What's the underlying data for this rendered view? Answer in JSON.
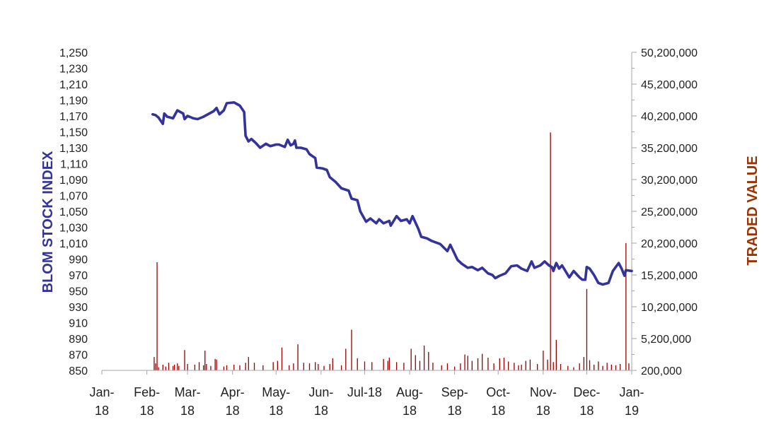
{
  "chart_data": {
    "type": "line",
    "title": "",
    "y_left": {
      "label": "BLOM STOCK INDEX",
      "color": "#333399",
      "ylim": [
        850,
        1250
      ],
      "ticks": [
        850,
        870,
        890,
        910,
        930,
        950,
        970,
        990,
        1010,
        1030,
        1050,
        1070,
        1090,
        1110,
        1130,
        1150,
        1170,
        1190,
        1210,
        1230,
        1250
      ],
      "tick_labels": [
        "850",
        "870",
        "890",
        "910",
        "930",
        "950",
        "970",
        "990",
        "1,010",
        "1,030",
        "1,050",
        "1,070",
        "1,090",
        "1,110",
        "1,130",
        "1,150",
        "1,170",
        "1,190",
        "1,210",
        "1,230",
        "1,250"
      ]
    },
    "y_right": {
      "label": "TRADED VALUE",
      "color": "#993300",
      "ylim": [
        200000,
        50200000
      ],
      "ticks": [
        200000,
        5200000,
        10200000,
        15200000,
        20200000,
        25200000,
        30200000,
        35200000,
        40200000,
        45200000,
        50200000
      ],
      "tick_labels": [
        "200,000",
        "5,200,000",
        "10,200,000",
        "15,200,000",
        "20,200,000",
        "25,200,000",
        "30,200,000",
        "35,200,000",
        "40,200,000",
        "45,200,000",
        "50,200,000"
      ]
    },
    "x_axis": {
      "range": [
        "2018-01-01",
        "2019-01-01"
      ],
      "ticks": [
        "2018-01-01",
        "2018-02-01",
        "2018-03-01",
        "2018-04-01",
        "2018-05-01",
        "2018-06-01",
        "2018-07-01",
        "2018-08-01",
        "2018-09-01",
        "2018-10-01",
        "2018-11-01",
        "2018-12-01",
        "2019-01-01"
      ],
      "tick_labels": [
        [
          "Jan-",
          "18"
        ],
        [
          "Feb-",
          "18"
        ],
        [
          "Mar-",
          "18"
        ],
        [
          "Apr-",
          "18"
        ],
        [
          "May-",
          "18"
        ],
        [
          "Jun-",
          "18"
        ],
        [
          "Jul-18",
          ""
        ],
        [
          "Aug-",
          "18"
        ],
        [
          "Sep-",
          "18"
        ],
        [
          "Oct-",
          "18"
        ],
        [
          "Nov-",
          "18"
        ],
        [
          "Dec-",
          "18"
        ],
        [
          "Jan-",
          "19"
        ]
      ]
    },
    "grid": false,
    "legend": "none",
    "series": [
      {
        "axis": "left",
        "kind": "line",
        "color": "#333399",
        "points": [
          [
            "2018-02-05",
            1172
          ],
          [
            "2018-02-07",
            1171
          ],
          [
            "2018-02-09",
            1168
          ],
          [
            "2018-02-12",
            1160
          ],
          [
            "2018-02-13",
            1173
          ],
          [
            "2018-02-15",
            1169
          ],
          [
            "2018-02-19",
            1167
          ],
          [
            "2018-02-22",
            1177
          ],
          [
            "2018-02-26",
            1173
          ],
          [
            "2018-02-27",
            1166
          ],
          [
            "2018-03-01",
            1170
          ],
          [
            "2018-03-05",
            1167
          ],
          [
            "2018-03-08",
            1166
          ],
          [
            "2018-03-12",
            1169
          ],
          [
            "2018-03-15",
            1172
          ],
          [
            "2018-03-19",
            1176
          ],
          [
            "2018-03-21",
            1180
          ],
          [
            "2018-03-23",
            1172
          ],
          [
            "2018-03-26",
            1177
          ],
          [
            "2018-03-28",
            1186
          ],
          [
            "2018-04-02",
            1187
          ],
          [
            "2018-04-04",
            1185
          ],
          [
            "2018-04-06",
            1183
          ],
          [
            "2018-04-09",
            1175
          ],
          [
            "2018-04-10",
            1145
          ],
          [
            "2018-04-12",
            1138
          ],
          [
            "2018-04-14",
            1141
          ],
          [
            "2018-04-17",
            1136
          ],
          [
            "2018-04-20",
            1130
          ],
          [
            "2018-04-24",
            1135
          ],
          [
            "2018-04-27",
            1132
          ],
          [
            "2018-05-01",
            1134
          ],
          [
            "2018-05-03",
            1134
          ],
          [
            "2018-05-07",
            1131
          ],
          [
            "2018-05-09",
            1140
          ],
          [
            "2018-05-11",
            1133
          ],
          [
            "2018-05-13",
            1135
          ],
          [
            "2018-05-14",
            1139
          ],
          [
            "2018-05-15",
            1130
          ],
          [
            "2018-05-18",
            1130
          ],
          [
            "2018-05-22",
            1128
          ],
          [
            "2018-05-24",
            1122
          ],
          [
            "2018-05-28",
            1117
          ],
          [
            "2018-05-29",
            1105
          ],
          [
            "2018-06-02",
            1104
          ],
          [
            "2018-06-05",
            1102
          ],
          [
            "2018-06-07",
            1093
          ],
          [
            "2018-06-11",
            1087
          ],
          [
            "2018-06-15",
            1079
          ],
          [
            "2018-06-20",
            1076
          ],
          [
            "2018-06-22",
            1066
          ],
          [
            "2018-06-26",
            1064
          ],
          [
            "2018-06-28",
            1050
          ],
          [
            "2018-07-02",
            1037
          ],
          [
            "2018-07-05",
            1041
          ],
          [
            "2018-07-09",
            1035
          ],
          [
            "2018-07-11",
            1040
          ],
          [
            "2018-07-14",
            1035
          ],
          [
            "2018-07-18",
            1038
          ],
          [
            "2018-07-19",
            1032
          ],
          [
            "2018-07-23",
            1044
          ],
          [
            "2018-07-26",
            1038
          ],
          [
            "2018-07-30",
            1040
          ],
          [
            "2018-08-01",
            1035
          ],
          [
            "2018-08-03",
            1044
          ],
          [
            "2018-08-07",
            1028
          ],
          [
            "2018-08-09",
            1018
          ],
          [
            "2018-08-13",
            1016
          ],
          [
            "2018-08-16",
            1013
          ],
          [
            "2018-08-22",
            1009
          ],
          [
            "2018-08-27",
            1000
          ],
          [
            "2018-08-29",
            1008
          ],
          [
            "2018-09-03",
            989
          ],
          [
            "2018-09-06",
            984
          ],
          [
            "2018-09-10",
            979
          ],
          [
            "2018-09-13",
            980
          ],
          [
            "2018-09-17",
            976
          ],
          [
            "2018-09-20",
            979
          ],
          [
            "2018-09-24",
            972
          ],
          [
            "2018-09-27",
            970
          ],
          [
            "2018-09-29",
            966
          ],
          [
            "2018-10-02",
            969
          ],
          [
            "2018-10-06",
            972
          ],
          [
            "2018-10-10",
            981
          ],
          [
            "2018-10-14",
            982
          ],
          [
            "2018-10-17",
            978
          ],
          [
            "2018-10-21",
            975
          ],
          [
            "2018-10-24",
            987
          ],
          [
            "2018-10-26",
            979
          ],
          [
            "2018-10-30",
            982
          ],
          [
            "2018-11-02",
            987
          ],
          [
            "2018-11-05",
            982
          ],
          [
            "2018-11-07",
            980
          ],
          [
            "2018-11-08",
            975
          ],
          [
            "2018-11-10",
            985
          ],
          [
            "2018-11-12",
            978
          ],
          [
            "2018-11-14",
            982
          ],
          [
            "2018-11-16",
            976
          ],
          [
            "2018-11-19",
            967
          ],
          [
            "2018-11-22",
            975
          ],
          [
            "2018-11-26",
            967
          ],
          [
            "2018-11-28",
            964
          ],
          [
            "2018-11-30",
            964
          ],
          [
            "2018-12-01",
            980
          ],
          [
            "2018-12-03",
            978
          ],
          [
            "2018-12-06",
            970
          ],
          [
            "2018-12-09",
            960
          ],
          [
            "2018-12-12",
            958
          ],
          [
            "2018-12-16",
            960
          ],
          [
            "2018-12-19",
            975
          ],
          [
            "2018-12-23",
            985
          ],
          [
            "2018-12-25",
            978
          ],
          [
            "2018-12-27",
            969
          ],
          [
            "2018-12-28",
            976
          ],
          [
            "2019-01-01",
            975
          ]
        ]
      },
      {
        "axis": "right",
        "kind": "bar",
        "color": "#990000",
        "points": [
          [
            "2018-02-06",
            2300000
          ],
          [
            "2018-02-07",
            1300000
          ],
          [
            "2018-02-08",
            17200000
          ],
          [
            "2018-02-09",
            700000
          ],
          [
            "2018-02-12",
            1100000
          ],
          [
            "2018-02-14",
            800000
          ],
          [
            "2018-02-16",
            1400000
          ],
          [
            "2018-02-19",
            900000
          ],
          [
            "2018-02-20",
            1100000
          ],
          [
            "2018-02-22",
            1300000
          ],
          [
            "2018-02-23",
            900000
          ],
          [
            "2018-02-27",
            3400000
          ],
          [
            "2018-03-01",
            1200000
          ],
          [
            "2018-03-06",
            1100000
          ],
          [
            "2018-03-09",
            1500000
          ],
          [
            "2018-03-12",
            1000000
          ],
          [
            "2018-03-13",
            3300000
          ],
          [
            "2018-03-14",
            1200000
          ],
          [
            "2018-03-17",
            900000
          ],
          [
            "2018-03-20",
            2000000
          ],
          [
            "2018-03-21",
            1900000
          ],
          [
            "2018-03-26",
            800000
          ],
          [
            "2018-03-28",
            1000000
          ],
          [
            "2018-04-02",
            1100000
          ],
          [
            "2018-04-06",
            1000000
          ],
          [
            "2018-04-10",
            1400000
          ],
          [
            "2018-04-12",
            2300000
          ],
          [
            "2018-04-16",
            1400000
          ],
          [
            "2018-04-22",
            1000000
          ],
          [
            "2018-04-29",
            1500000
          ],
          [
            "2018-05-02",
            1700000
          ],
          [
            "2018-05-05",
            3800000
          ],
          [
            "2018-05-10",
            1000000
          ],
          [
            "2018-05-13",
            1300000
          ],
          [
            "2018-05-16",
            4300000
          ],
          [
            "2018-05-20",
            1400000
          ],
          [
            "2018-05-24",
            1300000
          ],
          [
            "2018-05-28",
            1500000
          ],
          [
            "2018-05-30",
            1200000
          ],
          [
            "2018-06-03",
            900000
          ],
          [
            "2018-06-07",
            1200000
          ],
          [
            "2018-06-09",
            2100000
          ],
          [
            "2018-06-15",
            1000000
          ],
          [
            "2018-06-18",
            3600000
          ],
          [
            "2018-06-22",
            6600000
          ],
          [
            "2018-06-26",
            2100000
          ],
          [
            "2018-07-01",
            1600000
          ],
          [
            "2018-07-06",
            1500000
          ],
          [
            "2018-07-14",
            2000000
          ],
          [
            "2018-07-17",
            1700000
          ],
          [
            "2018-07-18",
            2200000
          ],
          [
            "2018-07-23",
            1500000
          ],
          [
            "2018-07-28",
            1400000
          ],
          [
            "2018-08-02",
            3600000
          ],
          [
            "2018-08-05",
            2600000
          ],
          [
            "2018-08-08",
            1700000
          ],
          [
            "2018-08-11",
            4100000
          ],
          [
            "2018-08-14",
            3100000
          ],
          [
            "2018-08-17",
            1400000
          ],
          [
            "2018-08-23",
            1000000
          ],
          [
            "2018-08-27",
            1300000
          ],
          [
            "2018-09-01",
            800000
          ],
          [
            "2018-09-05",
            1300000
          ],
          [
            "2018-09-08",
            2700000
          ],
          [
            "2018-09-10",
            2500000
          ],
          [
            "2018-09-13",
            1700000
          ],
          [
            "2018-09-17",
            2100000
          ],
          [
            "2018-09-20",
            2800000
          ],
          [
            "2018-09-24",
            2200000
          ],
          [
            "2018-09-28",
            1300000
          ],
          [
            "2018-10-02",
            2100000
          ],
          [
            "2018-10-05",
            2200000
          ],
          [
            "2018-10-08",
            1600000
          ],
          [
            "2018-10-12",
            1400000
          ],
          [
            "2018-10-15",
            1000000
          ],
          [
            "2018-10-17",
            1100000
          ],
          [
            "2018-10-20",
            1700000
          ],
          [
            "2018-10-23",
            1900000
          ],
          [
            "2018-10-28",
            1200000
          ],
          [
            "2018-11-01",
            3300000
          ],
          [
            "2018-11-04",
            1900000
          ],
          [
            "2018-11-06",
            37600000
          ],
          [
            "2018-11-08",
            1500000
          ],
          [
            "2018-11-10",
            5000000
          ],
          [
            "2018-11-13",
            1200000
          ],
          [
            "2018-11-18",
            900000
          ],
          [
            "2018-11-22",
            700000
          ],
          [
            "2018-11-26",
            1300000
          ],
          [
            "2018-11-29",
            2300000
          ],
          [
            "2018-12-01",
            13000000
          ],
          [
            "2018-12-03",
            1800000
          ],
          [
            "2018-12-06",
            1100000
          ],
          [
            "2018-12-09",
            1600000
          ],
          [
            "2018-12-12",
            900000
          ],
          [
            "2018-12-15",
            1400000
          ],
          [
            "2018-12-18",
            1100000
          ],
          [
            "2018-12-21",
            1000000
          ],
          [
            "2018-12-24",
            1200000
          ],
          [
            "2018-12-28",
            20200000
          ],
          [
            "2018-12-30",
            1300000
          ]
        ]
      }
    ]
  }
}
